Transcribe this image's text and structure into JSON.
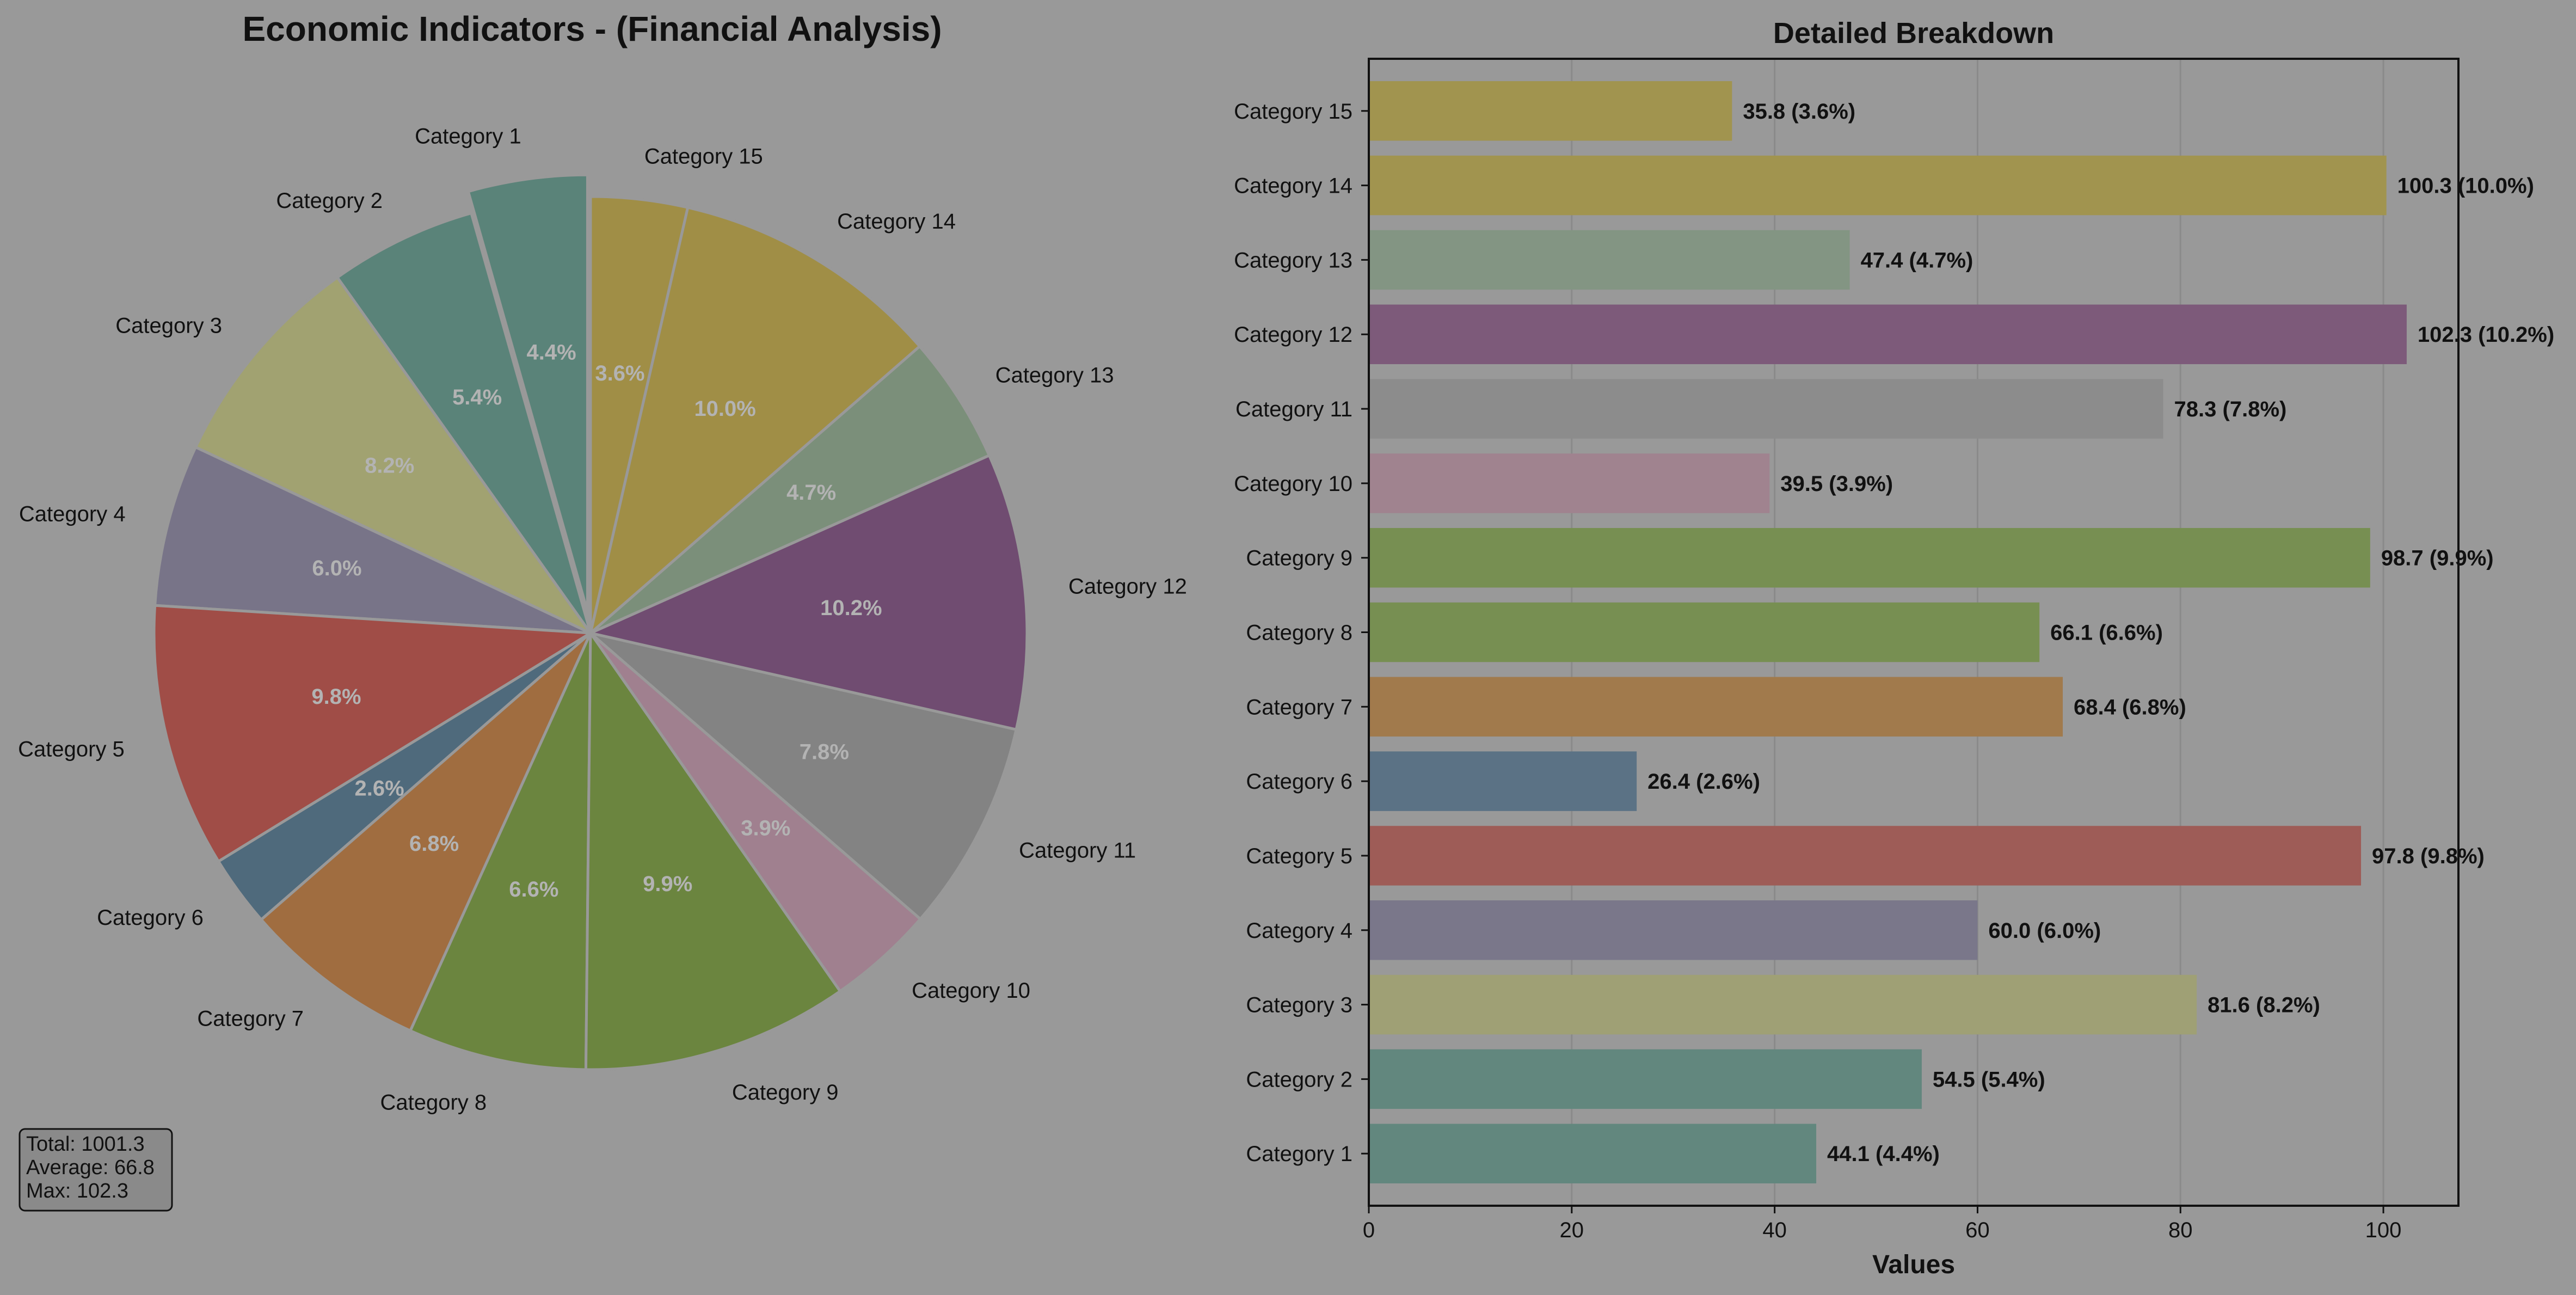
{
  "colors": {
    "background": "#999999",
    "slices": [
      "#5a8379",
      "#5a8379",
      "#a1a271",
      "#787488",
      "#a04d47",
      "#4f6a7c",
      "#a06d40",
      "#6b853f",
      "#6b853f",
      "#a0808f",
      "#838383",
      "#704c71",
      "#7b8f7a",
      "#a08e46",
      "#a08e46"
    ],
    "bars": [
      "#62877e",
      "#62877e",
      "#9fa075",
      "#7a778a",
      "#9e5c57",
      "#5b7285",
      "#a17a4c",
      "#778f52",
      "#778f52",
      "#a0838f",
      "#8c8c8c",
      "#7d5a7a",
      "#839583",
      "#a1944f",
      "#a1944f"
    ]
  },
  "chart_data": [
    {
      "type": "pie",
      "title": "Economic Indicators - (Financial Analysis)",
      "labels": [
        "Category 1",
        "Category 2",
        "Category 3",
        "Category 4",
        "Category 5",
        "Category 6",
        "Category 7",
        "Category 8",
        "Category 9",
        "Category 10",
        "Category 11",
        "Category 12",
        "Category 13",
        "Category 14",
        "Category 15"
      ],
      "values": [
        44.1,
        54.5,
        81.6,
        60.0,
        97.8,
        26.4,
        68.4,
        66.1,
        98.7,
        39.5,
        78.3,
        102.3,
        47.4,
        100.3,
        35.8
      ],
      "pct_labels": [
        "4.4%",
        "5.4%",
        "8.2%",
        "6.0%",
        "9.8%",
        "2.6%",
        "6.8%",
        "6.6%",
        "9.9%",
        "3.9%",
        "7.8%",
        "10.2%",
        "4.7%",
        "10.0%",
        "3.6%"
      ],
      "exploded": "Category 1",
      "direction": "counterclockwise from top"
    },
    {
      "type": "bar",
      "orientation": "horizontal",
      "title": "Detailed Breakdown",
      "xlabel": "Values",
      "categories": [
        "Category 1",
        "Category 2",
        "Category 3",
        "Category 4",
        "Category 5",
        "Category 6",
        "Category 7",
        "Category 8",
        "Category 9",
        "Category 10",
        "Category 11",
        "Category 12",
        "Category 13",
        "Category 14",
        "Category 15"
      ],
      "values": [
        44.1,
        54.5,
        81.6,
        60.0,
        97.8,
        26.4,
        68.4,
        66.1,
        98.7,
        39.5,
        78.3,
        102.3,
        47.4,
        100.3,
        35.8
      ],
      "data_labels": [
        "44.1 (4.4%)",
        "54.5 (5.4%)",
        "81.6 (8.2%)",
        "60.0 (6.0%)",
        "97.8 (9.8%)",
        "26.4 (2.6%)",
        "68.4 (6.8%)",
        "66.1 (6.6%)",
        "98.7 (9.9%)",
        "39.5 (3.9%)",
        "78.3 (7.8%)",
        "102.3 (10.2%)",
        "47.4 (4.7%)",
        "100.3 (10.0%)",
        "35.8 (3.6%)"
      ],
      "xlim": [
        0,
        107.4
      ],
      "xticks": [
        "0",
        "20",
        "40",
        "60",
        "80",
        "100"
      ],
      "grid": "vertical lines"
    }
  ],
  "stats": {
    "total": "Total: 1001.3",
    "average": "Average: 66.8",
    "max": "Max: 102.3"
  }
}
